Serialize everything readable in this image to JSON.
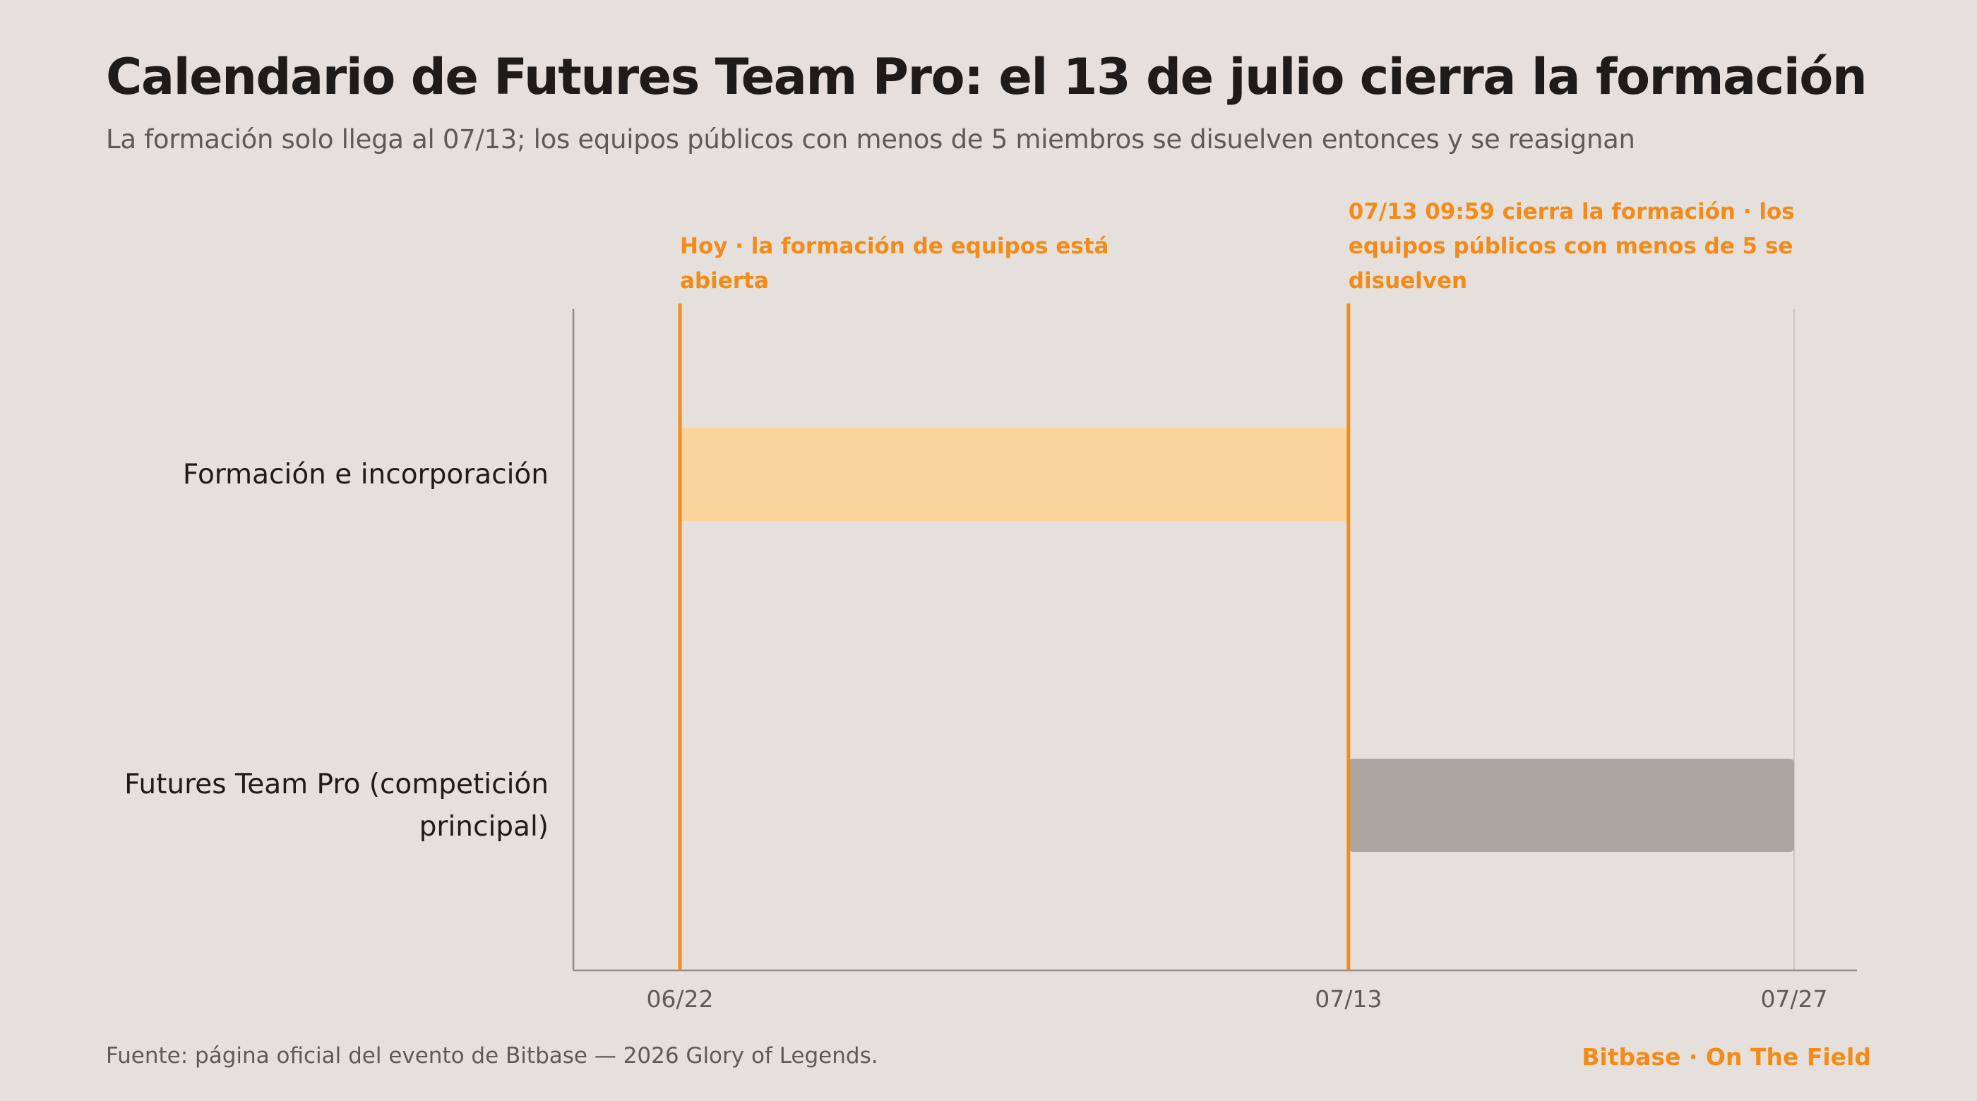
{
  "title": "Calendario de Futures Team Pro: el 13 de julio cierra la formación",
  "subtitle": "La formación solo llega al 07/13; los equipos públicos con menos de 5 miembros se disuelven entonces y se reasignan",
  "source": "Fuente: página oficial del evento de Bitbase — 2026 Glory of Legends.",
  "brand": "Bitbase · On The Field",
  "colors": {
    "accent": "#f28b18",
    "formation_bar": "#fad59e",
    "competition_bar": "#aaa6a0",
    "axis": "#8f8b86",
    "text_dark": "#1d1c1a",
    "text_muted": "#5e5b57"
  },
  "chart_data": {
    "type": "gantt",
    "x_ticks": [
      "06/22",
      "07/13",
      "07/27"
    ],
    "x_range": [
      "06/22",
      "07/27"
    ],
    "rows": [
      {
        "label_lines": [
          "Formación e incorporación"
        ],
        "start": "06/22",
        "end": "07/13",
        "color": "#fad59e"
      },
      {
        "label_lines": [
          "Futures Team Pro (competición",
          "principal)"
        ],
        "start": "07/13",
        "end": "07/27",
        "color": "#aaa6a0"
      }
    ],
    "markers": [
      {
        "date": "06/22",
        "label_lines": [
          "Hoy · la formación de equipos está",
          "abierta"
        ]
      },
      {
        "date": "07/13",
        "label_lines": [
          "07/13 09:59 cierra la formación · los",
          "equipos públicos con menos de 5 se",
          "disuelven"
        ]
      }
    ],
    "end_gridline": "07/27"
  }
}
